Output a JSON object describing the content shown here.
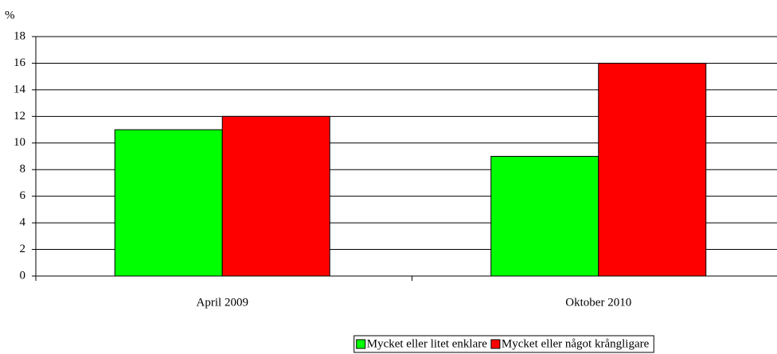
{
  "chart_data": {
    "type": "bar",
    "y_label": "%",
    "categories": [
      "April 2009",
      "Oktober 2010"
    ],
    "series": [
      {
        "name": "Mycket eller litet enklare",
        "color": "#00ff00",
        "values": [
          11,
          9
        ]
      },
      {
        "name": "Mycket eller något krångligare",
        "color": "#ff0000",
        "values": [
          12,
          16
        ]
      }
    ],
    "ylim": [
      0,
      18
    ],
    "yticks": [
      0,
      2,
      4,
      6,
      8,
      10,
      12,
      14,
      16,
      18
    ],
    "grid": true,
    "legend": "bottom"
  }
}
